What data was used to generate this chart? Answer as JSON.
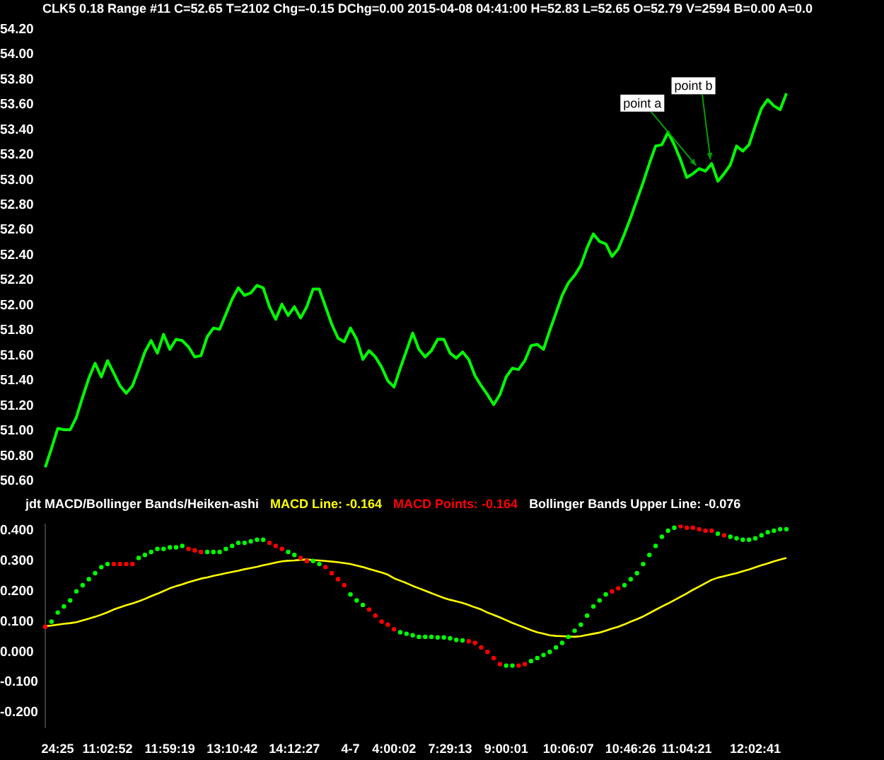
{
  "chart_data": [
    {
      "type": "line",
      "title": "CLK5  0.18 Range  #11 C=52.65 T=2102 Chg=-0.15 DChg=0.00 2015-04-08 04:41:00 H=52.83 L=52.65 O=52.79 V=2594 B=0.00 A=0.0",
      "categories": [
        null,
        null,
        null,
        null,
        null,
        null,
        null,
        null,
        null,
        null,
        null,
        null,
        null,
        null,
        null,
        null,
        null,
        null,
        null,
        null,
        null,
        null,
        null,
        null,
        null,
        null,
        null,
        null,
        null,
        null,
        null,
        null,
        null,
        null,
        null,
        null,
        null,
        null,
        null,
        null,
        null,
        null,
        null,
        null,
        null,
        null,
        null,
        null,
        null,
        null,
        null,
        null,
        null,
        null,
        null,
        null,
        null,
        null,
        null,
        null,
        null,
        null,
        null,
        null,
        null,
        null,
        null,
        null,
        null,
        null,
        null,
        null,
        null,
        null,
        null,
        null,
        null,
        null,
        null,
        null,
        null,
        null,
        null,
        null,
        null,
        null,
        null,
        null,
        null,
        null,
        null,
        null,
        null,
        null,
        null,
        null,
        null,
        null,
        null,
        null,
        null,
        null,
        null,
        null,
        null,
        null,
        null,
        null,
        null,
        null,
        null,
        null,
        null,
        null,
        null,
        null,
        null,
        null,
        null,
        null
      ],
      "series": [
        {
          "color": "#00ff00",
          "values": [
            50.71,
            50.86,
            51.02,
            51.01,
            51.01,
            51.11,
            51.27,
            51.42,
            51.54,
            51.43,
            51.56,
            51.46,
            51.36,
            51.3,
            51.36,
            51.49,
            51.63,
            51.72,
            51.62,
            51.77,
            51.65,
            51.73,
            51.72,
            51.67,
            51.59,
            51.6,
            51.75,
            51.82,
            51.81,
            51.93,
            52.05,
            52.14,
            52.08,
            52.1,
            52.16,
            52.14,
            51.99,
            51.89,
            52.01,
            51.92,
            51.99,
            51.9,
            51.99,
            52.13,
            52.13,
            51.99,
            51.85,
            51.74,
            51.71,
            51.82,
            51.73,
            51.57,
            51.64,
            51.59,
            51.51,
            51.4,
            51.35,
            51.5,
            51.64,
            51.78,
            51.65,
            51.59,
            51.64,
            51.73,
            51.73,
            51.62,
            51.58,
            51.63,
            51.57,
            51.44,
            51.36,
            51.29,
            51.21,
            51.29,
            51.43,
            51.5,
            51.49,
            51.56,
            51.68,
            51.69,
            51.65,
            51.8,
            51.94,
            52.08,
            52.18,
            52.24,
            52.32,
            52.46,
            52.57,
            52.51,
            52.49,
            52.39,
            52.45,
            52.57,
            52.7,
            52.84,
            52.98,
            53.13,
            53.27,
            53.28,
            53.38,
            53.28,
            53.16,
            53.02,
            53.05,
            53.09,
            53.07,
            53.13,
            52.99,
            53.05,
            53.12,
            53.27,
            53.23,
            53.28,
            53.43,
            53.57,
            53.64,
            53.59,
            53.56,
            53.69
          ]
        }
      ],
      "ylim": [
        50.6,
        54.2
      ],
      "yticks": [
        {
          "value": 50.6,
          "label": "50.60"
        },
        {
          "value": 50.8,
          "label": "50.80"
        },
        {
          "value": 51,
          "label": "51.00"
        },
        {
          "value": 51.2,
          "label": "51.20"
        },
        {
          "value": 51.4,
          "label": "51.40"
        },
        {
          "value": 51.6,
          "label": "51.60"
        },
        {
          "value": 51.8,
          "label": "51.80"
        },
        {
          "value": 52,
          "label": "52.00"
        },
        {
          "value": 52.2,
          "label": "52.20"
        },
        {
          "value": 52.4,
          "label": "52.40"
        },
        {
          "value": 52.6,
          "label": "52.60"
        },
        {
          "value": 52.8,
          "label": "52.80"
        },
        {
          "value": 53,
          "label": "53.00"
        },
        {
          "value": 53.2,
          "label": "53.20"
        },
        {
          "value": 53.4,
          "label": "53.40"
        },
        {
          "value": 53.6,
          "label": "53.60"
        },
        {
          "value": 53.8,
          "label": "53.80"
        },
        {
          "value": 54,
          "label": "54.00"
        },
        {
          "value": 54.2,
          "label": "54.20"
        }
      ],
      "tick_labels": "y",
      "annotations": [
        "point a",
        "point b"
      ]
    },
    {
      "type": "line",
      "title": "jdt MACD/Bollinger Bands/Heiken-ashi",
      "categories": [
        null,
        null,
        "24:25",
        null,
        null,
        null,
        null,
        null,
        null,
        null,
        "11:02:52",
        null,
        null,
        null,
        null,
        null,
        null,
        null,
        null,
        null,
        "11:59:19",
        null,
        null,
        null,
        null,
        null,
        null,
        null,
        null,
        null,
        "13:10:42",
        null,
        null,
        null,
        null,
        null,
        null,
        null,
        null,
        null,
        "14:12:27",
        null,
        null,
        null,
        null,
        null,
        null,
        null,
        null,
        "4-7",
        null,
        null,
        null,
        null,
        null,
        null,
        "4:00:02",
        null,
        null,
        null,
        null,
        null,
        null,
        null,
        null,
        "7:29:13",
        null,
        null,
        null,
        null,
        null,
        null,
        null,
        null,
        "9:00:01",
        null,
        null,
        null,
        null,
        null,
        null,
        null,
        null,
        null,
        "10:06:07",
        null,
        null,
        null,
        null,
        null,
        null,
        null,
        null,
        null,
        "10:46:26",
        null,
        null,
        null,
        null,
        null,
        null,
        null,
        null,
        "11:04:21",
        null,
        null,
        null,
        null,
        null,
        null,
        null,
        null,
        null,
        null,
        "12:02:41",
        null,
        null,
        null,
        null,
        null
      ],
      "series": [
        {
          "name": "MACD Line: -0.164",
          "color": "#ffff00",
          "values": [
            0.085,
            0.087,
            0.09,
            0.093,
            0.095,
            0.098,
            0.104,
            0.11,
            0.116,
            0.123,
            0.131,
            0.14,
            0.147,
            0.154,
            0.16,
            0.167,
            0.175,
            0.184,
            0.192,
            0.201,
            0.21,
            0.217,
            0.223,
            0.23,
            0.236,
            0.242,
            0.246,
            0.251,
            0.255,
            0.26,
            0.264,
            0.268,
            0.273,
            0.277,
            0.281,
            0.286,
            0.29,
            0.295,
            0.299,
            0.301,
            0.302,
            0.304,
            0.305,
            0.303,
            0.302,
            0.3,
            0.298,
            0.296,
            0.293,
            0.29,
            0.285,
            0.28,
            0.274,
            0.268,
            0.262,
            0.255,
            0.243,
            0.235,
            0.227,
            0.218,
            0.21,
            0.202,
            0.194,
            0.186,
            0.178,
            0.172,
            0.167,
            0.162,
            0.155,
            0.147,
            0.14,
            0.13,
            0.122,
            0.114,
            0.105,
            0.096,
            0.088,
            0.08,
            0.072,
            0.065,
            0.06,
            0.055,
            0.053,
            0.052,
            0.051,
            0.05,
            0.052,
            0.056,
            0.06,
            0.064,
            0.07,
            0.077,
            0.083,
            0.091,
            0.1,
            0.108,
            0.117,
            0.128,
            0.139,
            0.15,
            0.16,
            0.171,
            0.182,
            0.193,
            0.205,
            0.216,
            0.227,
            0.238,
            0.245,
            0.25,
            0.255,
            0.26,
            0.266,
            0.272,
            0.279,
            0.286,
            0.292,
            0.299,
            0.305,
            0.31
          ]
        },
        {
          "name": "MACD Points: -0.164",
          "type": "scatter",
          "marker": "circle",
          "color": "#ff0000",
          "values": [
            0.083,
            0.1,
            0.13,
            0.15,
            0.17,
            0.2,
            0.22,
            0.24,
            0.26,
            0.28,
            0.29,
            0.29,
            0.29,
            0.29,
            0.29,
            0.31,
            0.32,
            0.33,
            0.34,
            0.34,
            0.345,
            0.345,
            0.35,
            0.34,
            0.335,
            0.33,
            0.33,
            0.33,
            0.33,
            0.34,
            0.35,
            0.36,
            0.36,
            0.365,
            0.37,
            0.37,
            0.36,
            0.35,
            0.34,
            0.33,
            0.32,
            0.31,
            0.3,
            0.3,
            0.29,
            0.28,
            0.26,
            0.24,
            0.22,
            0.19,
            0.17,
            0.155,
            0.14,
            0.12,
            0.1,
            0.09,
            0.075,
            0.065,
            0.06,
            0.055,
            0.05,
            0.05,
            0.05,
            0.048,
            0.048,
            0.045,
            0.04,
            0.038,
            0.035,
            0.03,
            0.015,
            0.0,
            -0.02,
            -0.04,
            -0.045,
            -0.045,
            -0.045,
            -0.04,
            -0.03,
            -0.02,
            -0.01,
            0.0,
            0.015,
            0.03,
            0.05,
            0.07,
            0.09,
            0.12,
            0.15,
            0.17,
            0.19,
            0.2,
            0.21,
            0.22,
            0.24,
            0.26,
            0.29,
            0.32,
            0.35,
            0.38,
            0.4,
            0.41,
            0.415,
            0.41,
            0.41,
            0.405,
            0.4,
            0.4,
            0.39,
            0.385,
            0.38,
            0.375,
            0.37,
            0.37,
            0.375,
            0.385,
            0.395,
            0.4,
            0.405,
            0.405
          ],
          "colors": [
            "#ff0000",
            "#00ff00",
            "#00ff00",
            "#00ff00",
            "#00ff00",
            "#00ff00",
            "#00ff00",
            "#00ff00",
            "#00ff00",
            "#00ff00",
            "#00ff00",
            "#ff0000",
            "#ff0000",
            "#ff0000",
            "#ff0000",
            "#00ff00",
            "#00ff00",
            "#00ff00",
            "#00ff00",
            "#00ff00",
            "#00ff00",
            "#00ff00",
            "#00ff00",
            "#ff0000",
            "#ff0000",
            "#ff0000",
            "#00ff00",
            "#00ff00",
            "#00ff00",
            "#00ff00",
            "#00ff00",
            "#00ff00",
            "#00ff00",
            "#00ff00",
            "#00ff00",
            "#00ff00",
            "#ff0000",
            "#ff0000",
            "#ff0000",
            "#00ff00",
            "#00ff00",
            "#ff0000",
            "#ff0000",
            "#00ff00",
            "#00ff00",
            "#ff0000",
            "#ff0000",
            "#ff0000",
            "#ff0000",
            "#00ff00",
            "#00ff00",
            "#00ff00",
            "#ff0000",
            "#ff0000",
            "#ff0000",
            "#ff0000",
            "#ff0000",
            "#00ff00",
            "#00ff00",
            "#00ff00",
            "#00ff00",
            "#00ff00",
            "#00ff00",
            "#00ff00",
            "#00ff00",
            "#00ff00",
            "#00ff00",
            "#00ff00",
            "#ff0000",
            "#ff0000",
            "#ff0000",
            "#ff0000",
            "#ff0000",
            "#ff0000",
            "#00ff00",
            "#00ff00",
            "#ff0000",
            "#ff0000",
            "#00ff00",
            "#00ff00",
            "#00ff00",
            "#00ff00",
            "#00ff00",
            "#00ff00",
            "#00ff00",
            "#00ff00",
            "#00ff00",
            "#00ff00",
            "#00ff00",
            "#00ff00",
            "#00ff00",
            "#ff0000",
            "#ff0000",
            "#00ff00",
            "#00ff00",
            "#00ff00",
            "#00ff00",
            "#00ff00",
            "#00ff00",
            "#00ff00",
            "#00ff00",
            "#00ff00",
            "#ff0000",
            "#ff0000",
            "#ff0000",
            "#ff0000",
            "#ff0000",
            "#ff0000",
            "#00ff00",
            "#ff0000",
            "#00ff00",
            "#00ff00",
            "#00ff00",
            "#00ff00",
            "#00ff00",
            "#00ff00",
            "#00ff00",
            "#00ff00",
            "#00ff00",
            "#00ff00"
          ]
        }
      ],
      "ylim": [
        -0.25,
        0.42
      ],
      "yticks": [
        {
          "value": -0.2,
          "label": "-0.200"
        },
        {
          "value": -0.1,
          "label": "-0.100"
        },
        {
          "value": 0,
          "label": "0.000"
        },
        {
          "value": 0.1,
          "label": "0.100"
        },
        {
          "value": 0.2,
          "label": "0.200"
        },
        {
          "value": 0.3,
          "label": "0.300"
        },
        {
          "value": 0.4,
          "label": "0.400"
        }
      ],
      "legend": "top left",
      "annotations": [
        "Bollinger Bands Upper Line: -0.076"
      ]
    }
  ]
}
